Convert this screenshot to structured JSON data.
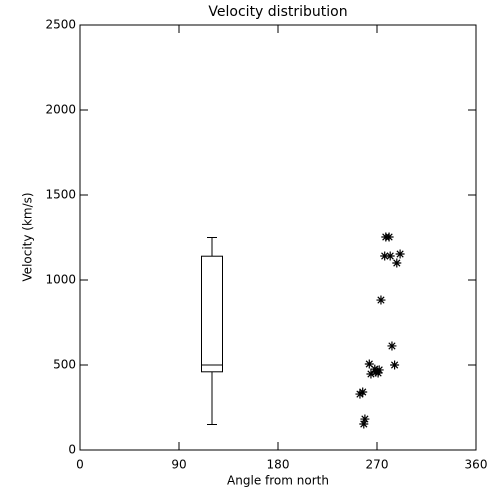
{
  "chart_data": {
    "type": "scatter",
    "title": "Velocity distribution",
    "xlabel": "Angle from north",
    "ylabel": "Velocity (km/s)",
    "xlim": [
      0,
      360
    ],
    "xticks": [
      0,
      90,
      180,
      270,
      360
    ],
    "ylim": [
      0,
      2500
    ],
    "yticks": [
      0,
      500,
      1000,
      1500,
      2000,
      2500
    ],
    "color": "#000000",
    "x": [
      254.5,
      257,
      259,
      258,
      263,
      264.5,
      268,
      269,
      272,
      271,
      273.6,
      277,
      278,
      281,
      282,
      283.6,
      286,
      288,
      291
    ],
    "values": [
      329,
      341,
      182,
      153,
      506,
      447,
      476,
      459,
      471,
      453,
      882,
      1141,
      1253,
      1253,
      1141,
      612,
      500,
      1100,
      1153
    ],
    "box": {
      "x": 120,
      "whisker_low": 150,
      "q1": 460,
      "median": 500,
      "q3": 1140,
      "whisker_high": 1250
    }
  }
}
